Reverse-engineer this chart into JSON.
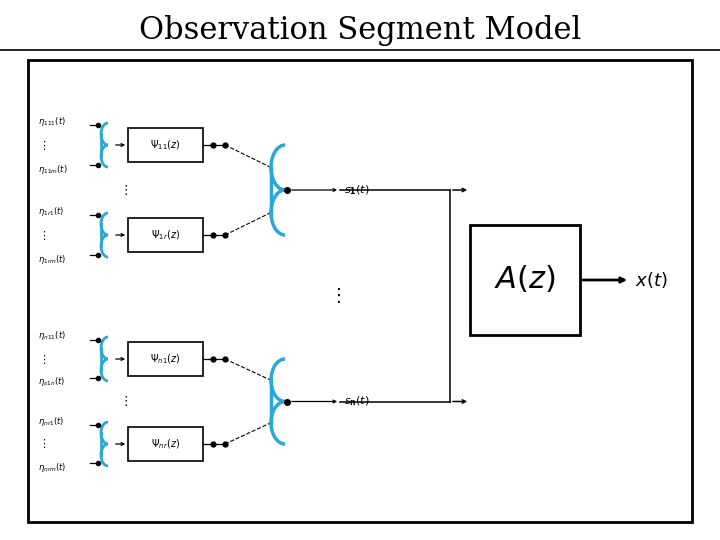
{
  "title": "Observation Segment Model",
  "title_fontsize": 22,
  "background_color": "#ffffff",
  "box_color": "#000000",
  "cyan_color": "#29a8d4",
  "arrow_color": "#000000"
}
